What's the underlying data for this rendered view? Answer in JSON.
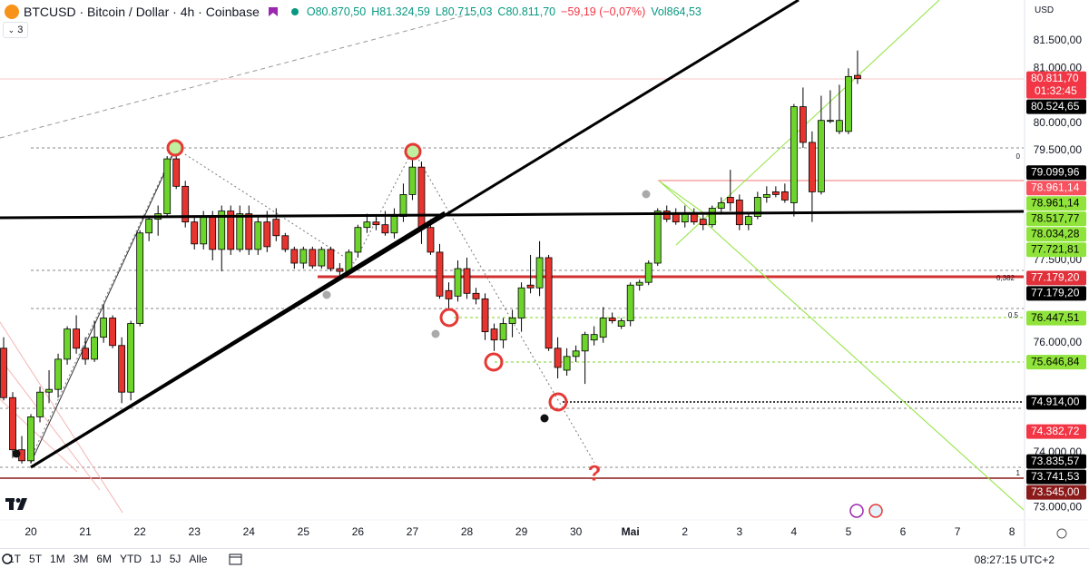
{
  "header": {
    "title": "BTCUSD · Bitcoin / Dollar · 4h · Coinbase",
    "open": "O80.870,50",
    "high": "H81.324,59",
    "low": "L80.715,03",
    "close": "C80.811,70",
    "change": "−59,19 (−0,07%)",
    "volume": "Vol864,53",
    "indicators": "3",
    "currency": "USD"
  },
  "chart_data": {
    "type": "candlestick",
    "categories": [
      null,
      null,
      null,
      "20",
      null,
      null,
      null,
      null,
      null,
      "21",
      null,
      null,
      null,
      null,
      null,
      "22",
      null,
      null,
      null,
      null,
      null,
      "23",
      null,
      null,
      null,
      null,
      null,
      "24",
      null,
      null,
      null,
      null,
      null,
      "25",
      null,
      null,
      null,
      null,
      null,
      "26",
      null,
      null,
      null,
      null,
      null,
      "27",
      null,
      null,
      null,
      null,
      null,
      "28",
      null,
      null,
      null,
      null,
      null,
      "29",
      null,
      null,
      null,
      null,
      null,
      "30",
      null,
      null,
      null,
      null,
      null,
      "Mai",
      null,
      null,
      null,
      null,
      null,
      "2",
      null,
      null,
      null,
      null,
      null,
      "3",
      null,
      null,
      null,
      null,
      null,
      "4",
      null,
      null,
      null,
      null,
      null,
      "5",
      null,
      null,
      null,
      null,
      null,
      "6",
      null,
      null,
      null,
      null,
      null,
      "7",
      null,
      null,
      null,
      null,
      null,
      "8"
    ],
    "open": [
      75900,
      75000,
      74050,
      73850,
      74650,
      75100,
      75150,
      75700,
      76250,
      75900,
      75700,
      76100,
      76450,
      75950,
      75100,
      76350,
      78000,
      78250,
      78350,
      79350,
      78850,
      78200,
      77800,
      78300,
      77700,
      78400,
      77700,
      78350,
      77700,
      78200,
      78250,
      77950,
      77700,
      77450,
      77700,
      77400,
      77700,
      77350,
      77300,
      77650,
      78100,
      78200,
      78150,
      78000,
      78300,
      78700,
      79200,
      78100,
      77650,
      76950,
      76850,
      77350,
      76900,
      76800,
      76250,
      76050,
      76350,
      76450,
      77050,
      77000,
      77550,
      75900,
      75500,
      75750,
      75850,
      76050,
      76100,
      76450,
      76300,
      76400,
      77050,
      77100,
      77450,
      78400,
      78350,
      78200,
      78350,
      78250,
      78150,
      78450,
      78650,
      78600,
      78150,
      78300,
      78650,
      78750,
      78750,
      78550,
      80300,
      79650,
      78750,
      80050,
      79850,
      79850,
      80870.5,
      null,
      null,
      null,
      null,
      null,
      null,
      null,
      null,
      null,
      null,
      null,
      null,
      null,
      null,
      null,
      null,
      null
    ],
    "high": [
      76100,
      75100,
      74300,
      74700,
      75200,
      75500,
      75800,
      76300,
      76500,
      76100,
      76400,
      76700,
      76500,
      76100,
      76400,
      78050,
      78300,
      78500,
      79400,
      79500,
      78950,
      78300,
      78400,
      78400,
      78500,
      78500,
      78500,
      78500,
      78300,
      78400,
      78450,
      78000,
      77750,
      77750,
      77750,
      77750,
      77750,
      77450,
      77700,
      78150,
      78350,
      78300,
      78400,
      78450,
      78900,
      79450,
      79300,
      78250,
      77800,
      77100,
      77500,
      77550,
      77000,
      76900,
      76350,
      76450,
      76600,
      77100,
      77600,
      77850,
      77600,
      76100,
      75900,
      75950,
      76200,
      76300,
      76650,
      76550,
      76450,
      77100,
      77150,
      77500,
      78450,
      78500,
      78450,
      78500,
      78450,
      78350,
      78500,
      78650,
      79150,
      78700,
      78350,
      78750,
      78850,
      78850,
      78900,
      80350,
      80650,
      79850,
      80500,
      80600,
      80700,
      81000,
      81324.59,
      null,
      null,
      null,
      null,
      null,
      null,
      null,
      null,
      null,
      null,
      null,
      null,
      null,
      null,
      null,
      null,
      null
    ],
    "low": [
      74950,
      73900,
      73800,
      73800,
      74550,
      74900,
      75000,
      75600,
      75800,
      75600,
      75650,
      76000,
      75900,
      74900,
      74950,
      76300,
      77850,
      77950,
      78300,
      78800,
      78100,
      77700,
      77700,
      77500,
      77300,
      77600,
      77650,
      77600,
      77600,
      77650,
      77850,
      77650,
      77350,
      77350,
      77350,
      77350,
      77300,
      77150,
      77250,
      77550,
      78000,
      78050,
      77950,
      77900,
      78200,
      78600,
      77800,
      77600,
      76800,
      76600,
      76750,
      76800,
      76700,
      76050,
      75850,
      75900,
      76100,
      76200,
      76900,
      76850,
      75850,
      75350,
      75400,
      75650,
      75250,
      75950,
      76000,
      76350,
      76250,
      76300,
      76950,
      77050,
      77400,
      78200,
      78150,
      78100,
      78150,
      78050,
      78100,
      78350,
      78400,
      78050,
      78050,
      78250,
      78550,
      78650,
      78550,
      78300,
      79550,
      78200,
      78700,
      80000,
      79800,
      79800,
      80715.03,
      null,
      null,
      null,
      null,
      null,
      null,
      null,
      null,
      null,
      null,
      null,
      null,
      null,
      null,
      null,
      null,
      null
    ],
    "close": [
      75000,
      74050,
      73850,
      74650,
      75100,
      75150,
      75700,
      76250,
      75900,
      75700,
      76100,
      76450,
      75950,
      75100,
      76350,
      78000,
      78250,
      78350,
      79350,
      78850,
      78200,
      77800,
      78300,
      77700,
      78400,
      77700,
      78350,
      77700,
      78200,
      77750,
      77950,
      77700,
      77450,
      77700,
      77400,
      77700,
      77350,
      77300,
      77650,
      78100,
      78200,
      78150,
      78000,
      78300,
      78700,
      79200,
      78100,
      77650,
      76850,
      76800,
      77350,
      76900,
      76800,
      76200,
      76050,
      76350,
      76450,
      77000,
      77000,
      77550,
      75900,
      75550,
      75750,
      75850,
      76150,
      76150,
      76450,
      76400,
      76400,
      77050,
      77100,
      77450,
      78400,
      78250,
      78200,
      78350,
      78200,
      78150,
      78450,
      78550,
      78550,
      78150,
      78300,
      78650,
      78700,
      78700,
      78600,
      80300,
      79650,
      78750,
      80050,
      80050,
      80050,
      80850,
      80811.7,
      null,
      null,
      null,
      null,
      null,
      null,
      null,
      null,
      null,
      null,
      null,
      null,
      null,
      null,
      null,
      null,
      null
    ],
    "up_color": "#6cd42a",
    "down_color": "#e8342e",
    "ylim": [
      72822,
      82244
    ],
    "yticks": [
      {
        "value": 81500,
        "label": "81.500,00"
      },
      {
        "value": 81000,
        "label": "81.000,00"
      },
      {
        "value": 80000,
        "label": "80.000,00"
      },
      {
        "value": 79500,
        "label": "79.500,00"
      },
      {
        "value": 77500,
        "label": "77.500,00"
      },
      {
        "value": 76000,
        "label": "76.000,00"
      },
      {
        "value": 74000,
        "label": "74.000,00"
      },
      {
        "value": 73000,
        "label": "73.000,00"
      }
    ],
    "grid": false,
    "price_labels": [
      {
        "value": 80811.7,
        "label": "80.811,70",
        "sublabel": "01:32:45",
        "color": "#f23645"
      },
      {
        "value": 80524.65,
        "label": "80.524,65",
        "color": "#000000"
      },
      {
        "value": 79099.96,
        "label": "79.099,96",
        "color": "#000000"
      },
      {
        "value": 78961.14,
        "label": "78.961,14",
        "color": "#f7525f"
      },
      {
        "value": 78961.14,
        "label": "78.961,14",
        "color": "#8fe33a"
      },
      {
        "value": 78517.77,
        "label": "78.517,77",
        "color": "#8fe33a"
      },
      {
        "value": 78034.28,
        "label": "78.034,28",
        "color": "#8fe33a"
      },
      {
        "value": 77721.81,
        "label": "77.721,81",
        "color": "#8fe33a"
      },
      {
        "value": 77179.2,
        "label": "77.179,20",
        "color": "#e0303a"
      },
      {
        "value": 77179.2,
        "label": "77.179,20",
        "color": "#000000"
      },
      {
        "value": 76447.51,
        "label": "76.447,51",
        "color": "#8fe33a"
      },
      {
        "value": 75646.84,
        "label": "75.646,84",
        "color": "#8fe33a"
      },
      {
        "value": 74914,
        "label": "74.914,00",
        "color": "#000000"
      },
      {
        "value": 74382.72,
        "label": "74.382,72",
        "color": "#f23645"
      },
      {
        "value": 73835.57,
        "label": "73.835,57",
        "color": "#000000"
      },
      {
        "value": 73741.53,
        "label": "73.741,53",
        "color": "#000000"
      },
      {
        "value": 73545,
        "label": "73.545,00",
        "color": "#8b1a1a"
      }
    ],
    "fib_labels": [
      "0",
      "0,382",
      "0.5",
      "1"
    ],
    "annotation": "?"
  },
  "toolbar": {
    "ranges": [
      "1T",
      "5T",
      "1M",
      "3M",
      "6M",
      "YTD",
      "1J",
      "5J",
      "Alle"
    ],
    "time": "08:27:15 UTC+2"
  }
}
